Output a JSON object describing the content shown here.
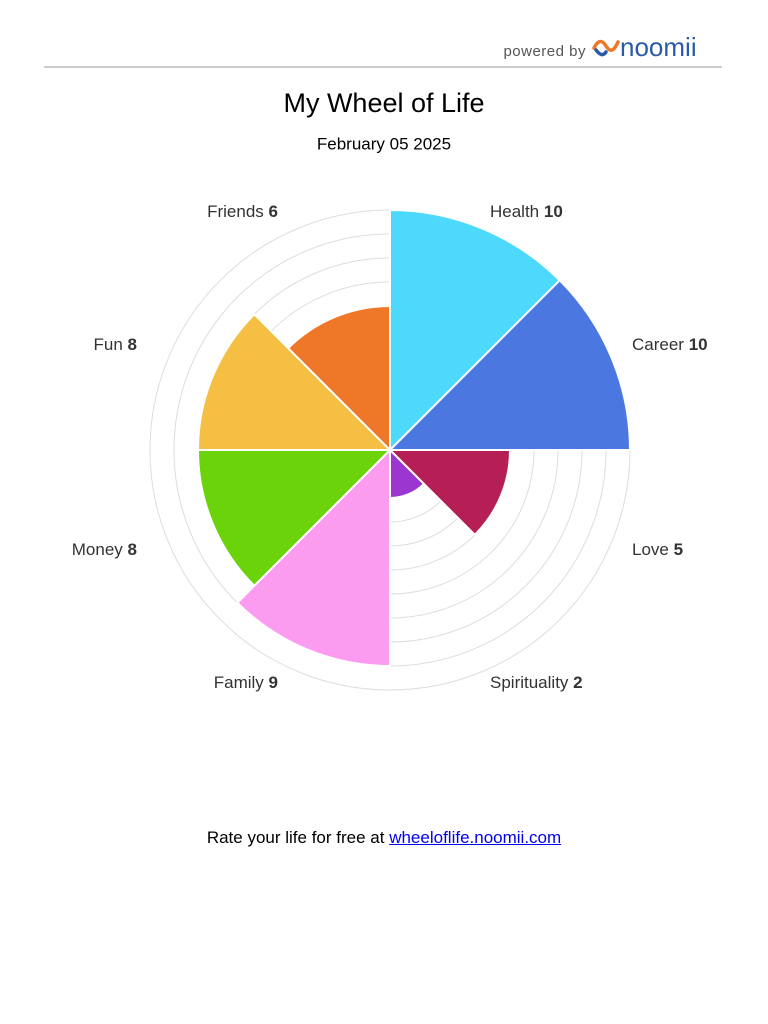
{
  "header": {
    "powered_by": "powered by",
    "brand": "noomii"
  },
  "chart_data": {
    "type": "polar-area",
    "title": "My Wheel of Life",
    "subtitle": "February 05 2025",
    "categories": [
      "Health",
      "Career",
      "Love",
      "Spirituality",
      "Family",
      "Money",
      "Fun",
      "Friends"
    ],
    "values": [
      10,
      10,
      5,
      2,
      9,
      8,
      8,
      6
    ],
    "colors": [
      "#4dd9fc",
      "#4a78e0",
      "#b51f55",
      "#9b36d1",
      "#fc9cf0",
      "#6ad30a",
      "#f4bf42",
      "#ef7728"
    ],
    "rlim": [
      0,
      10
    ],
    "rticks": [
      1,
      2,
      3,
      4,
      5,
      6,
      7,
      8,
      9,
      10
    ],
    "grid": true
  },
  "footer": {
    "text": "Rate your life for free at",
    "link": "wheeloflife.noomii.com"
  }
}
